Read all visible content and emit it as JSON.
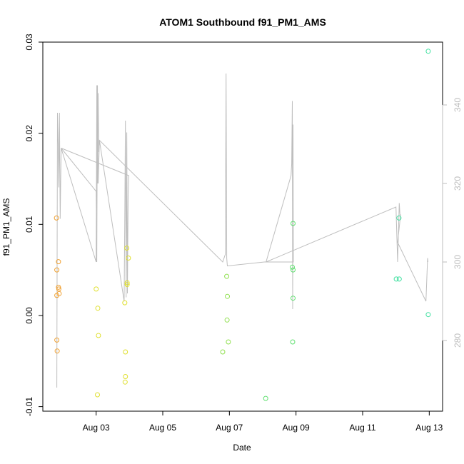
{
  "chart_data": {
    "type": "scatter",
    "title": "ATOM1 Southbound f91_PM1_AMS",
    "xlabel": "Date",
    "ylabel": "f91_PM1_AMS",
    "xlim": [
      1.4,
      13.4
    ],
    "ylim": [
      -0.0105,
      0.03
    ],
    "yticks": [
      0.03,
      0.02,
      0.01,
      0.0,
      -0.01
    ],
    "ytick_labels": [
      "0.03",
      "0.02",
      "0.01",
      "0.00",
      "-0.01"
    ],
    "xticks": [
      3,
      5,
      7,
      9,
      11,
      13
    ],
    "xtick_labels": [
      "Aug 03",
      "Aug 05",
      "Aug 07",
      "Aug 09",
      "Aug 11",
      "Aug 13"
    ],
    "y2lim": [
      262,
      356
    ],
    "y2ticks": [
      280,
      300,
      320,
      340
    ],
    "y2tick_labels": [
      "280",
      "300",
      "320",
      "340"
    ],
    "grid": false,
    "legend": "none",
    "colors": {
      "axis": "#000000",
      "secondary_line": "#bebebe",
      "secondary_axis": "#bebebe"
    },
    "points": [
      {
        "x": 1.81,
        "y": 0.0107,
        "color": "#f0a030"
      },
      {
        "x": 1.82,
        "y": 0.005,
        "color": "#f0a030"
      },
      {
        "x": 1.82,
        "y": 0.0022,
        "color": "#f0a030"
      },
      {
        "x": 1.82,
        "y": -0.0027,
        "color": "#f0a030"
      },
      {
        "x": 1.83,
        "y": -0.0039,
        "color": "#f0a030"
      },
      {
        "x": 1.87,
        "y": 0.0059,
        "color": "#f0a030"
      },
      {
        "x": 1.87,
        "y": 0.0031,
        "color": "#f0a030"
      },
      {
        "x": 1.88,
        "y": 0.0029,
        "color": "#f0a030"
      },
      {
        "x": 1.89,
        "y": 0.0024,
        "color": "#f0a030"
      },
      {
        "x": 3.0,
        "y": 0.0029,
        "color": "#e0e030"
      },
      {
        "x": 3.05,
        "y": 0.0008,
        "color": "#e0e030"
      },
      {
        "x": 3.07,
        "y": -0.0022,
        "color": "#e0e030"
      },
      {
        "x": 3.04,
        "y": -0.0087,
        "color": "#e0e030"
      },
      {
        "x": 3.86,
        "y": 0.0014,
        "color": "#e0e030"
      },
      {
        "x": 3.88,
        "y": -0.004,
        "color": "#e0e030"
      },
      {
        "x": 3.88,
        "y": -0.0067,
        "color": "#e0e030"
      },
      {
        "x": 3.87,
        "y": -0.0073,
        "color": "#e0e030"
      },
      {
        "x": 3.92,
        "y": 0.0074,
        "color": "#e0e030"
      },
      {
        "x": 3.93,
        "y": 0.0036,
        "color": "#e0e030"
      },
      {
        "x": 3.93,
        "y": 0.0034,
        "color": "#e0e030"
      },
      {
        "x": 3.97,
        "y": 0.0063,
        "color": "#e0e030"
      },
      {
        "x": 6.8,
        "y": -0.004,
        "color": "#90e050"
      },
      {
        "x": 6.92,
        "y": 0.0043,
        "color": "#90e050"
      },
      {
        "x": 6.94,
        "y": 0.0021,
        "color": "#90e050"
      },
      {
        "x": 6.93,
        "y": -0.0005,
        "color": "#90e050"
      },
      {
        "x": 6.97,
        "y": -0.0029,
        "color": "#90e050"
      },
      {
        "x": 8.09,
        "y": -0.0091,
        "color": "#60e070"
      },
      {
        "x": 8.89,
        "y": 0.0053,
        "color": "#60e070"
      },
      {
        "x": 8.91,
        "y": 0.0101,
        "color": "#60e070"
      },
      {
        "x": 8.91,
        "y": 0.005,
        "color": "#60e070"
      },
      {
        "x": 8.91,
        "y": 0.0019,
        "color": "#60e070"
      },
      {
        "x": 8.9,
        "y": -0.0029,
        "color": "#60e070"
      },
      {
        "x": 12.01,
        "y": 0.004,
        "color": "#40e0a0"
      },
      {
        "x": 12.1,
        "y": 0.004,
        "color": "#40e0a0"
      },
      {
        "x": 12.09,
        "y": 0.0107,
        "color": "#40e0a0"
      },
      {
        "x": 12.97,
        "y": 0.029,
        "color": "#40e0a0"
      },
      {
        "x": 12.97,
        "y": 0.0001,
        "color": "#40e0a0"
      }
    ],
    "secondary_series": {
      "axis": "right",
      "x": [
        1.82,
        1.84,
        1.86,
        1.88,
        1.9,
        1.92,
        1.95,
        3.0,
        3.02,
        3.04,
        3.06,
        3.08,
        3.1,
        3.84,
        3.86,
        3.88,
        3.9,
        3.92,
        3.94,
        3.96,
        3.98,
        1.95,
        3.0,
        3.02,
        3.04,
        3.06,
        3.1,
        6.8,
        6.88,
        6.9,
        6.92,
        6.94,
        8.05,
        8.1,
        8.85,
        8.87,
        8.89,
        8.9,
        8.91,
        8.92,
        8.1,
        12.0,
        12.05,
        12.1,
        12.12,
        12.14,
        12.05,
        12.9,
        12.95,
        12.96
      ],
      "y": [
        268,
        338,
        330,
        319,
        338,
        311,
        329,
        300,
        345,
        320,
        343,
        328,
        331,
        290,
        311,
        336,
        291,
        333,
        292,
        317,
        322,
        329,
        318,
        300,
        345,
        320,
        331,
        300,
        302,
        348,
        301,
        299,
        300,
        300,
        322,
        325,
        341,
        288,
        335,
        300,
        300,
        314,
        300,
        315,
        312,
        312,
        305,
        290,
        301,
        300
      ]
    }
  }
}
